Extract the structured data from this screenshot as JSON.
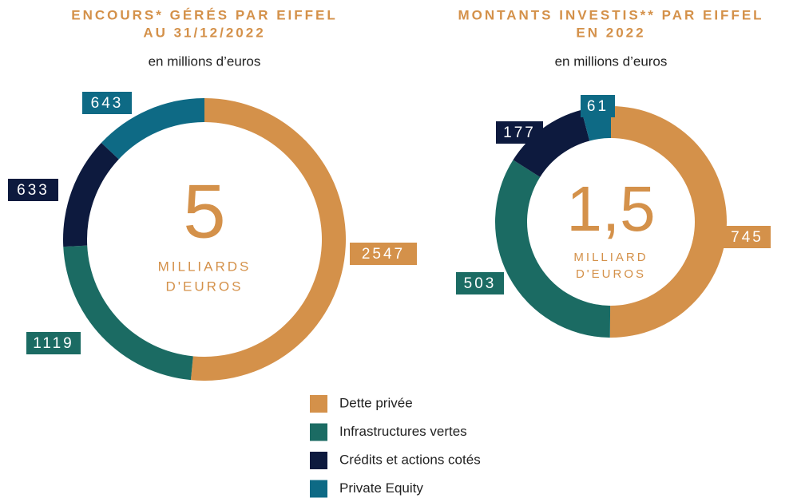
{
  "chart_data": [
    {
      "type": "donut",
      "title": [
        "ENCOURS* GÉRÉS PAR EIFFEL",
        "AU 31/12/2022"
      ],
      "subtitle": "en millions d’euros",
      "center_value": "5",
      "center_label": [
        "MILLIARDS",
        "D'EUROS"
      ],
      "categories": [
        "Dette privée",
        "Infrastructures vertes",
        "Crédits et actions cotés",
        "Private Equity"
      ],
      "values": [
        2547,
        1119,
        633,
        643
      ],
      "colors": [
        "#d4914a",
        "#1b6b63",
        "#0d1a3e",
        "#0e6a85"
      ]
    },
    {
      "type": "donut",
      "title": [
        "MONTANTS INVESTIS** PAR EIFFEL",
        "EN 2022"
      ],
      "subtitle": "en millions d’euros",
      "center_value": "1,5",
      "center_label": [
        "MILLIARD",
        "D'EUROS"
      ],
      "categories": [
        "Dette privée",
        "Infrastructures vertes",
        "Crédits et actions cotés",
        "Private Equity"
      ],
      "values": [
        745,
        503,
        177,
        61
      ],
      "colors": [
        "#d4914a",
        "#1b6b63",
        "#0d1a3e",
        "#0e6a85"
      ]
    }
  ]
}
